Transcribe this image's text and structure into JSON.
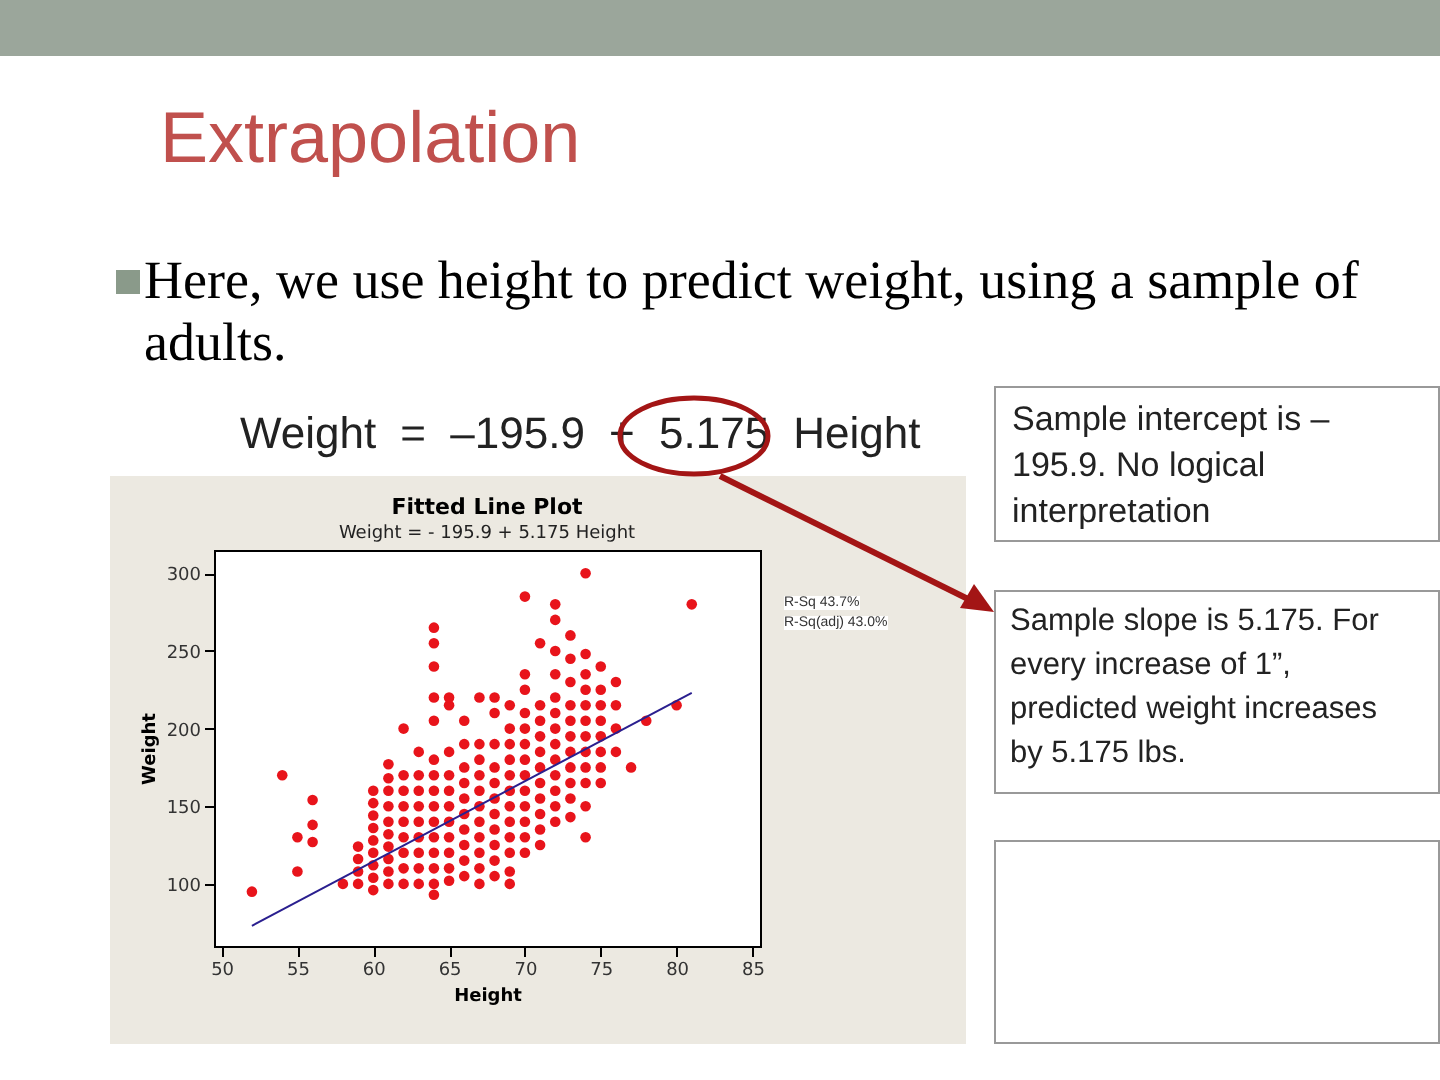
{
  "chart_data": {
    "type": "scatter",
    "title": "Fitted Line Plot",
    "subtitle": "Weight =  - 195.9 + 5.175 Height",
    "xlabel": "Height",
    "ylabel": "Weight",
    "xlim": [
      49.5,
      85.5
    ],
    "ylim": [
      60,
      315
    ],
    "xticks": [
      50,
      55,
      60,
      65,
      70,
      75,
      80,
      85
    ],
    "yticks": [
      100,
      150,
      200,
      250,
      300
    ],
    "grid": false,
    "marker": "circle",
    "line_style": "solid",
    "annotations": [
      "Extrapolation",
      "Here, we use height to predict weight, using a sample of adults.",
      "Weight = –195.9 + 5.175 Height",
      "Sample intercept is –195.9. No logical interpretation",
      "Sample slope is 5.175. For every increase of 1”, predicted weight increases by 5.175 lbs.",
      "R-Sq 43.7%",
      "R-Sq(adj) 43.0%"
    ],
    "series": [
      {
        "color": "#e8141b",
        "x": [
          52,
          54,
          55,
          55,
          56,
          56,
          56,
          58,
          59,
          59,
          59,
          59,
          60,
          60,
          60,
          60,
          60,
          60,
          60,
          60,
          60,
          61,
          61,
          61,
          61,
          61,
          61,
          61,
          61,
          61,
          61,
          62,
          62,
          62,
          62,
          62,
          62,
          62,
          62,
          62,
          63,
          63,
          63,
          63,
          63,
          63,
          63,
          63,
          63,
          64,
          64,
          64,
          64,
          64,
          64,
          64,
          64,
          64,
          64,
          64,
          64,
          64,
          64,
          64,
          65,
          65,
          65,
          65,
          65,
          65,
          65,
          65,
          65,
          65,
          65,
          66,
          66,
          66,
          66,
          66,
          66,
          66,
          66,
          66,
          66,
          67,
          67,
          67,
          67,
          67,
          67,
          67,
          67,
          67,
          67,
          67,
          68,
          68,
          68,
          68,
          68,
          68,
          68,
          68,
          68,
          68,
          68,
          69,
          69,
          69,
          69,
          69,
          69,
          69,
          69,
          69,
          69,
          69,
          69,
          70,
          70,
          70,
          70,
          70,
          70,
          70,
          70,
          70,
          70,
          70,
          70,
          70,
          71,
          71,
          71,
          71,
          71,
          71,
          71,
          71,
          71,
          71,
          71,
          72,
          72,
          72,
          72,
          72,
          72,
          72,
          72,
          72,
          72,
          72,
          72,
          72,
          73,
          73,
          73,
          73,
          73,
          73,
          73,
          73,
          73,
          73,
          73,
          74,
          74,
          74,
          74,
          74,
          74,
          74,
          74,
          74,
          74,
          74,
          74,
          75,
          75,
          75,
          75,
          75,
          75,
          75,
          75,
          76,
          76,
          76,
          76,
          77,
          78,
          80,
          81
        ],
        "values": [
          95,
          170,
          108,
          130,
          127,
          138,
          154,
          100,
          100,
          108,
          116,
          124,
          96,
          104,
          112,
          120,
          128,
          136,
          144,
          152,
          160,
          100,
          108,
          116,
          124,
          132,
          140,
          150,
          160,
          168,
          177,
          100,
          110,
          120,
          130,
          140,
          150,
          160,
          170,
          200,
          100,
          110,
          120,
          130,
          140,
          150,
          160,
          170,
          185,
          93,
          100,
          110,
          120,
          130,
          140,
          150,
          160,
          170,
          180,
          205,
          220,
          240,
          255,
          265,
          102,
          110,
          120,
          130,
          140,
          150,
          160,
          170,
          185,
          215,
          220,
          105,
          115,
          125,
          135,
          145,
          155,
          165,
          175,
          190,
          205,
          100,
          110,
          120,
          130,
          140,
          150,
          160,
          170,
          180,
          190,
          220,
          105,
          115,
          125,
          135,
          145,
          155,
          165,
          175,
          190,
          210,
          220,
          100,
          108,
          120,
          130,
          140,
          150,
          160,
          170,
          180,
          190,
          200,
          215,
          120,
          130,
          140,
          150,
          160,
          170,
          180,
          190,
          200,
          210,
          225,
          235,
          285,
          125,
          135,
          145,
          155,
          165,
          175,
          185,
          195,
          205,
          215,
          255,
          140,
          150,
          160,
          170,
          180,
          190,
          200,
          210,
          220,
          235,
          250,
          270,
          280,
          143,
          155,
          165,
          175,
          185,
          195,
          205,
          215,
          230,
          245,
          260,
          130,
          150,
          165,
          175,
          185,
          195,
          205,
          215,
          225,
          235,
          248,
          300,
          165,
          175,
          185,
          195,
          205,
          215,
          225,
          240,
          185,
          200,
          215,
          230,
          175,
          205,
          215,
          280
        ]
      },
      {
        "type": "line",
        "marker": "none",
        "color": "#2a1f8f",
        "x": [
          52,
          81
        ],
        "values": [
          73,
          223
        ]
      }
    ]
  }
}
